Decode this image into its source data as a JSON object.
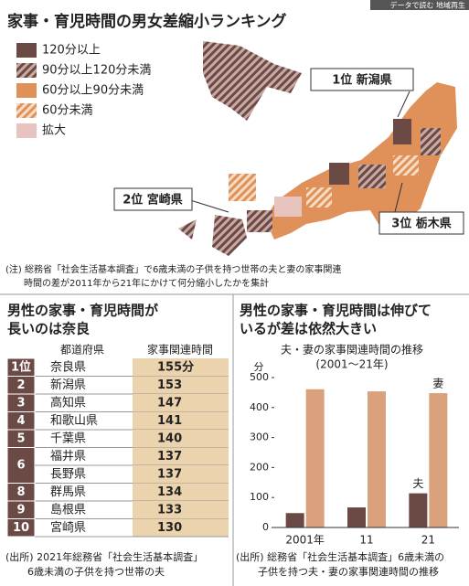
{
  "header": {
    "title": "家事・育児時間の男女差縮小ランキング",
    "badge": "データで読む 地域再生"
  },
  "legend": [
    "120分以上",
    "90分以上120分未満",
    "60分以上90分未満",
    "60分未満",
    "拡大"
  ],
  "map_labels": [
    "1位 新潟県",
    "2位 宮崎県",
    "3位 栃木県"
  ],
  "note": [
    "(注) 総務省「社会生活基本調査」で6歳未満の子供を持つ世帯の夫と妻の家事関連",
    "時間の差が2011年から21年にかけて何分縮小したかを集計"
  ],
  "table": {
    "title": [
      "男性の家事・育児時間が",
      "長いのは奈良"
    ],
    "columns": [
      "都道府県",
      "家事関連時間"
    ],
    "rows": [
      {
        "rank": "1位",
        "name": "奈良県",
        "time": "155分"
      },
      {
        "rank": "2",
        "name": "新潟県",
        "time": "153"
      },
      {
        "rank": "3",
        "name": "高知県",
        "time": "147"
      },
      {
        "rank": "4",
        "name": "和歌山県",
        "time": "141"
      },
      {
        "rank": "5",
        "name": "千葉県",
        "time": "140"
      },
      {
        "rank": "6",
        "name": "福井県",
        "time": "137"
      },
      {
        "name": "長野県",
        "time": "137"
      },
      {
        "rank": "8",
        "name": "群馬県",
        "time": "134"
      },
      {
        "rank": "9",
        "name": "島根県",
        "time": "133"
      },
      {
        "rank": "10",
        "name": "宮崎県",
        "time": "130"
      }
    ],
    "source": [
      "(出所) 2021年総務省「社会生活基本調査」",
      "6歳未満の子供を持つ世帯の夫"
    ]
  },
  "chart_data": {
    "type": "bar",
    "section_title": [
      "男性の家事・育児時間は伸びて",
      "いるが差は依然大きい"
    ],
    "title": [
      "夫・妻の家事関連時間の推移",
      "(2001～21年)"
    ],
    "y_label": "分",
    "categories": [
      "2001年",
      "11",
      "21"
    ],
    "series": [
      {
        "name": "夫",
        "color": "#6b4a45",
        "values": [
          48,
          67,
          114
        ]
      },
      {
        "name": "妻",
        "color": "#d9a27c",
        "values": [
          461,
          454,
          448
        ]
      }
    ],
    "ylim": [
      0,
      500
    ],
    "yticks": [
      0,
      100,
      200,
      300,
      400,
      500
    ],
    "source": [
      "(出所) 総務省「社会生活基本調査」6歳未満の",
      "子供を持つ夫・妻の家事関連時間の推移"
    ]
  }
}
